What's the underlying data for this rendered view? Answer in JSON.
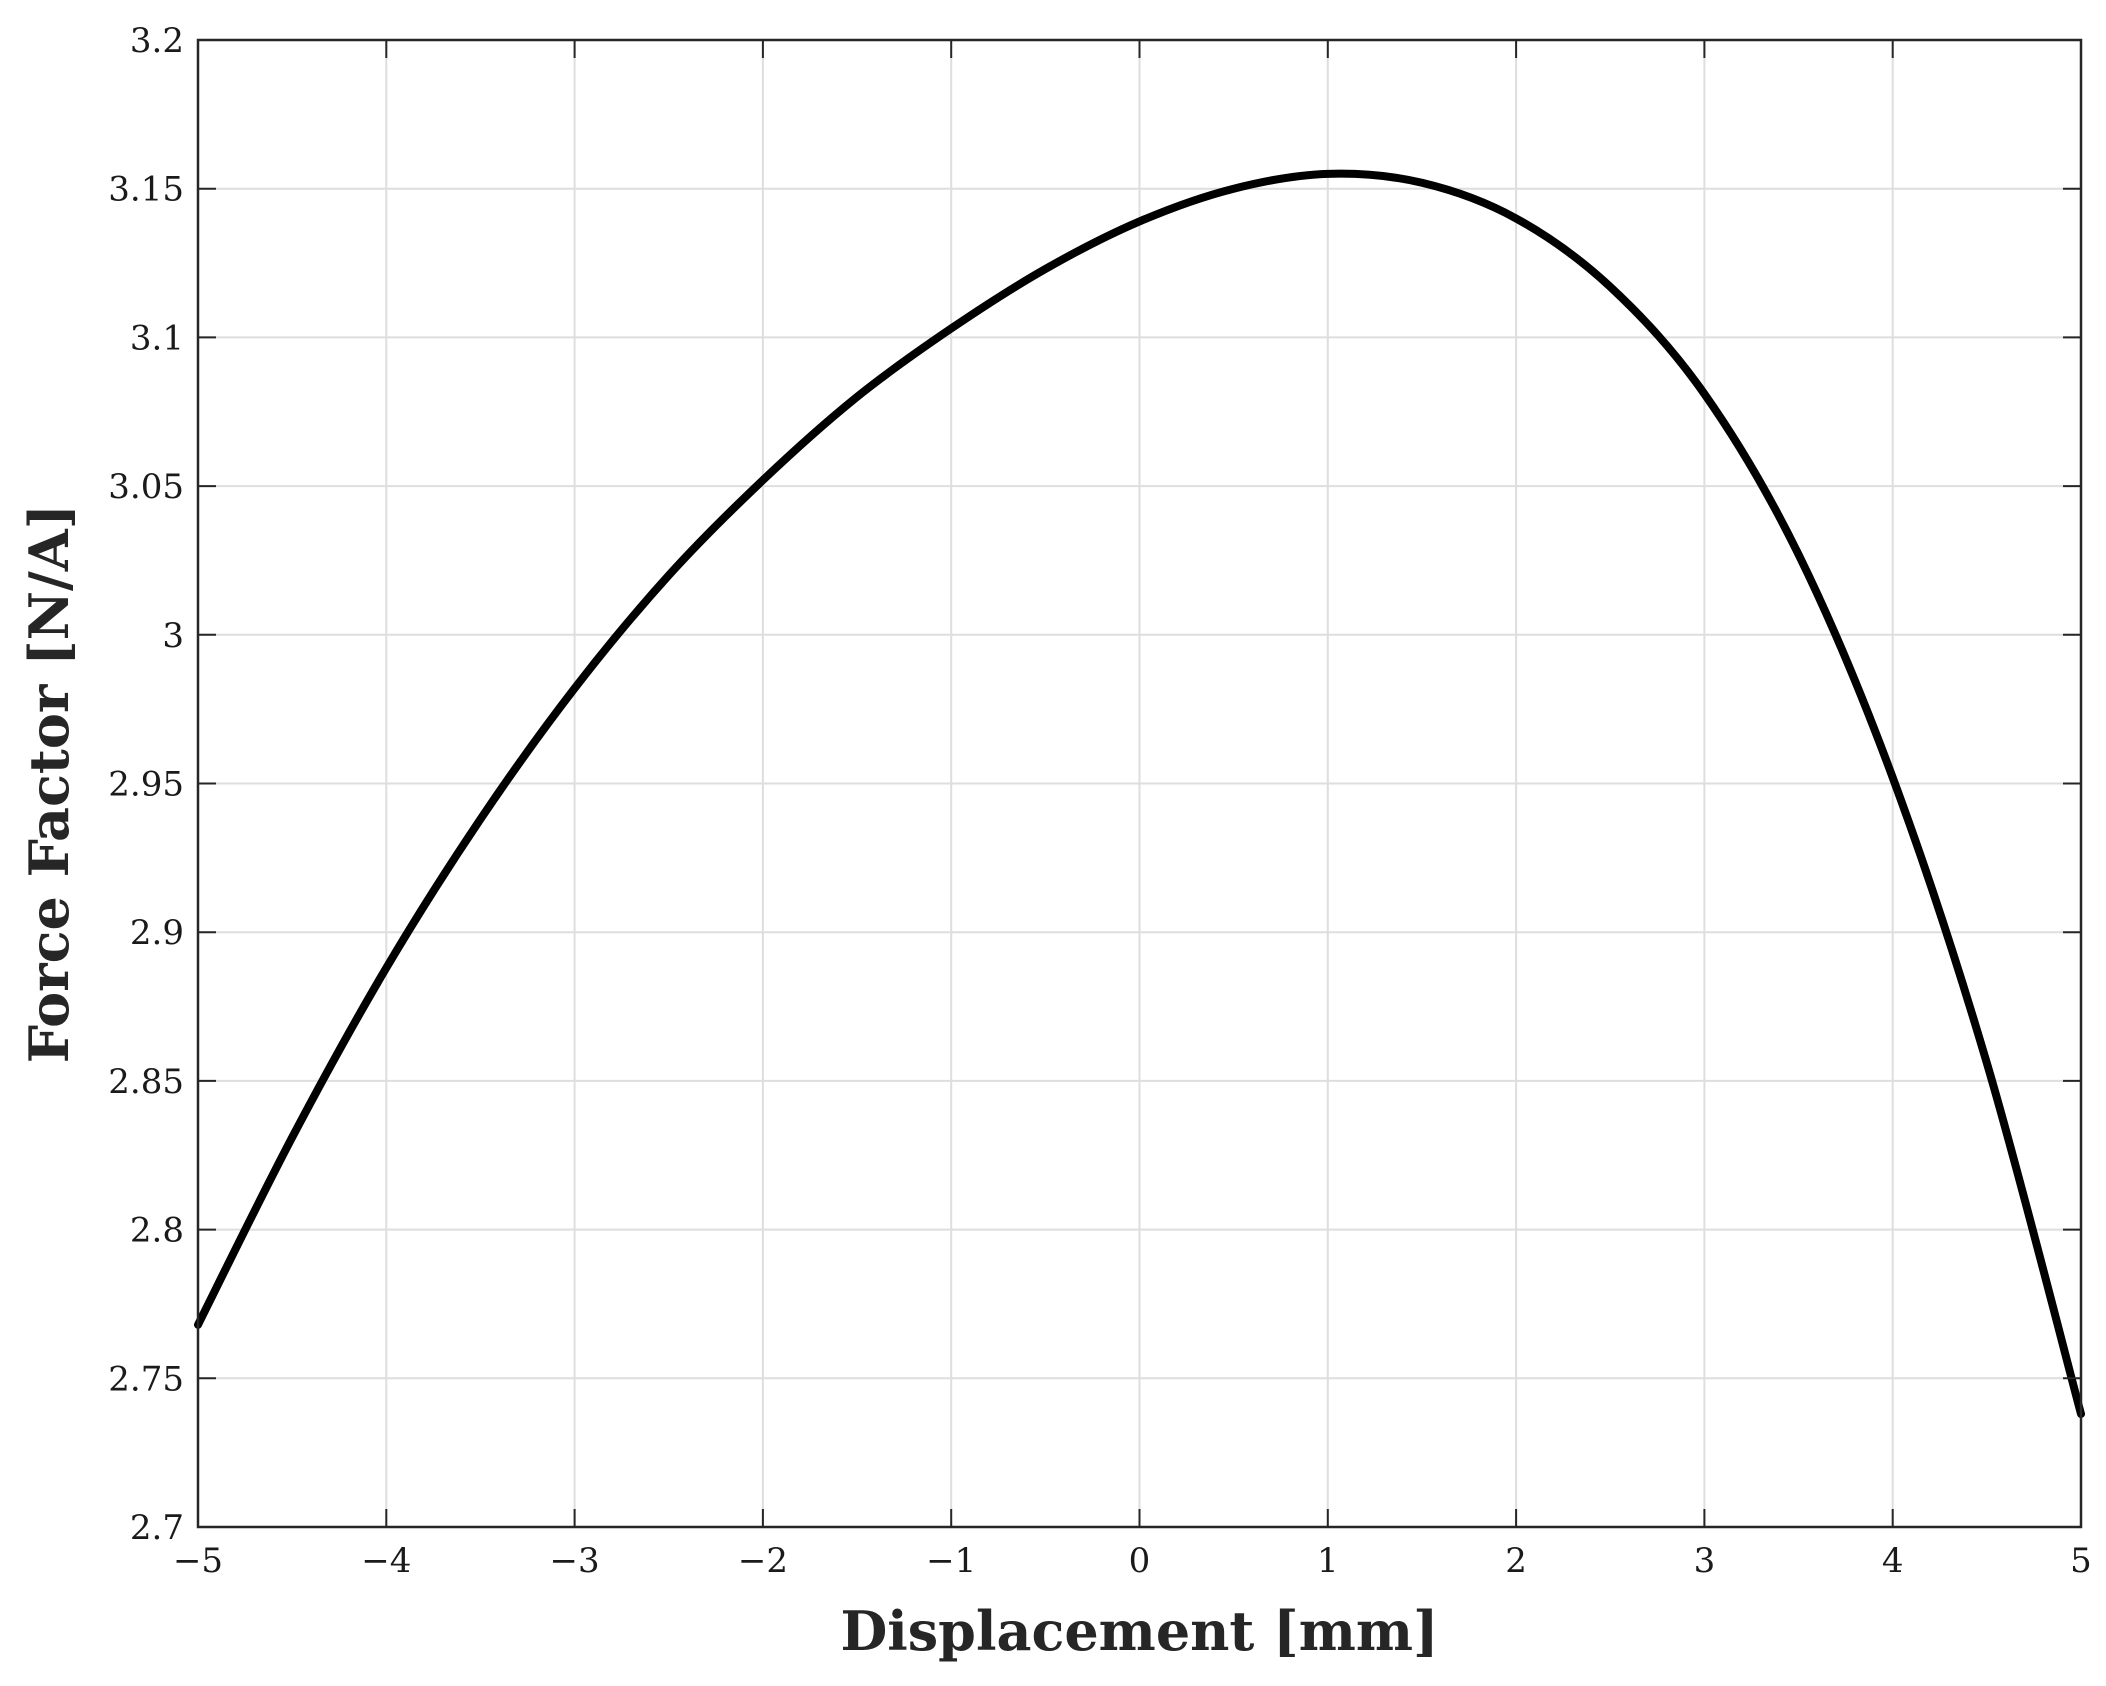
{
  "chart_data": {
    "type": "line",
    "title": "",
    "xlabel": "Displacement [mm]",
    "ylabel": "Force Factor [N/A]",
    "xlim": [
      -5,
      5
    ],
    "ylim": [
      2.7,
      3.2
    ],
    "grid": true,
    "legend": "none",
    "x_ticks": [
      -5,
      -4,
      -3,
      -2,
      -1,
      0,
      1,
      2,
      3,
      4,
      5
    ],
    "x_tick_labels": [
      "−5",
      "−4",
      "−3",
      "−2",
      "−1",
      "0",
      "1",
      "2",
      "3",
      "4",
      "5"
    ],
    "y_ticks": [
      2.7,
      2.75,
      2.8,
      2.85,
      2.9,
      2.95,
      3.0,
      3.05,
      3.1,
      3.15,
      3.2
    ],
    "y_tick_labels": [
      "2.7",
      "2.75",
      "2.8",
      "2.85",
      "2.9",
      "2.95",
      "3",
      "3.05",
      "3.1",
      "3.15",
      "3.2"
    ],
    "series": [
      {
        "color": "#000000",
        "x": [
          -5,
          -4.5,
          -4,
          -3.5,
          -3,
          -2.5,
          -2,
          -1.5,
          -1,
          -0.5,
          0,
          0.5,
          1,
          1.5,
          2,
          2.5,
          3,
          3.5,
          4,
          4.5,
          5
        ],
        "y": [
          2.768,
          2.831,
          2.888,
          2.938,
          2.982,
          3.02,
          3.052,
          3.08,
          3.103,
          3.123,
          3.139,
          3.15,
          3.155,
          3.152,
          3.14,
          3.117,
          3.081,
          3.027,
          2.952,
          2.856,
          2.738
        ]
      }
    ]
  }
}
